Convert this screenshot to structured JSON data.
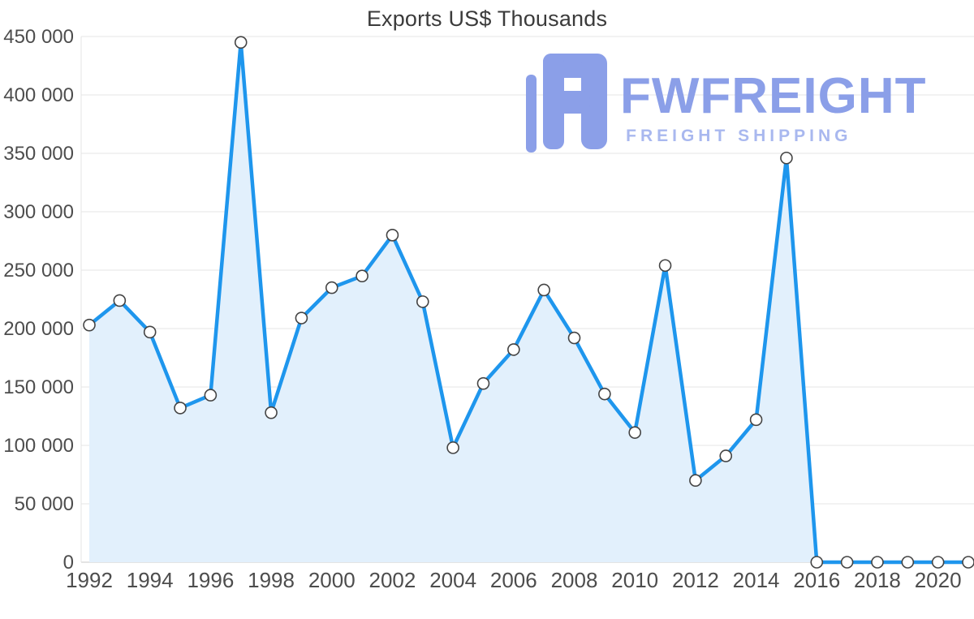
{
  "chart_data": {
    "type": "area",
    "title": "Exports US$ Thousands",
    "xlabel": "",
    "ylabel": "",
    "x": [
      1992,
      1993,
      1994,
      1995,
      1996,
      1997,
      1998,
      1999,
      2000,
      2001,
      2002,
      2003,
      2004,
      2005,
      2006,
      2007,
      2008,
      2009,
      2010,
      2011,
      2012,
      2013,
      2014,
      2015,
      2016,
      2017,
      2018,
      2019,
      2020,
      2021
    ],
    "values": [
      203000,
      224000,
      197000,
      132000,
      143000,
      445000,
      128000,
      209000,
      235000,
      245000,
      280000,
      223000,
      98000,
      153000,
      182000,
      233000,
      192000,
      144000,
      111000,
      254000,
      70000,
      91000,
      122000,
      346000,
      0,
      0,
      0,
      0,
      0,
      0
    ],
    "ylim": [
      0,
      450000
    ],
    "yticks": [
      0,
      50000,
      100000,
      150000,
      200000,
      250000,
      300000,
      350000,
      400000,
      450000
    ],
    "ytick_labels": [
      "0",
      "50 000",
      "100 000",
      "150 000",
      "200 000",
      "250 000",
      "300 000",
      "350 000",
      "400 000",
      "450 000"
    ],
    "xticks": [
      1992,
      1994,
      1996,
      1998,
      2000,
      2002,
      2004,
      2006,
      2008,
      2010,
      2012,
      2014,
      2016,
      2018,
      2020
    ],
    "grid": "horizontal",
    "legend": "none",
    "line_color": "#1e96ed",
    "fill_color": "#e2f0fc",
    "marker_fill": "#ffffff",
    "marker_stroke": "#444444",
    "grid_color": "#e4e4e4",
    "axis_line_color": "#c9c9c9"
  },
  "watermark": {
    "brand": "FWFREIGHT",
    "tagline": "FREIGHT SHIPPING",
    "color": "#8b9fe8"
  }
}
